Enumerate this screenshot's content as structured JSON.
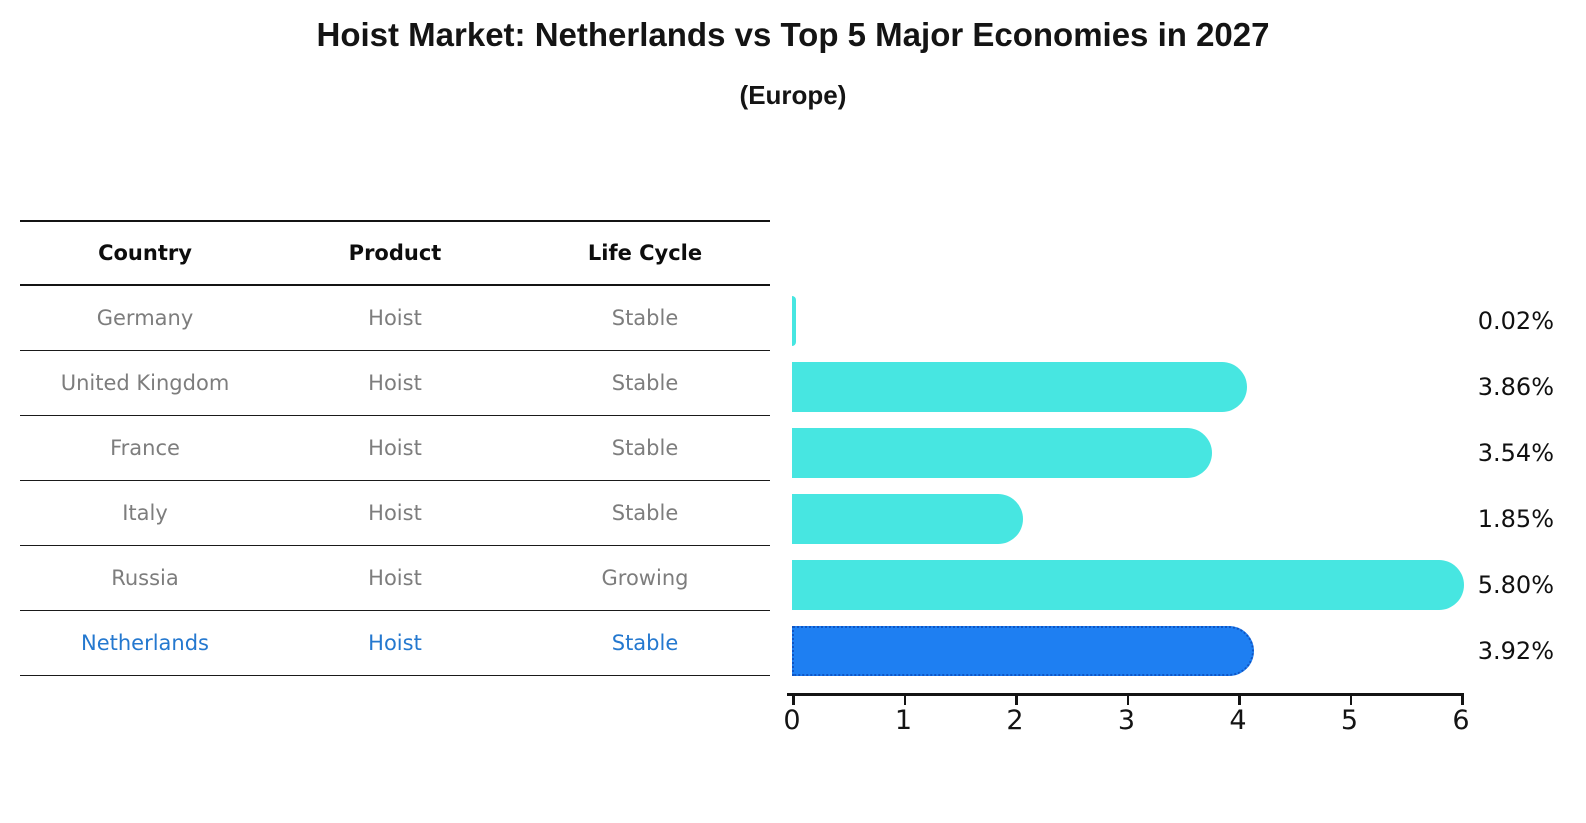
{
  "title": "Hoist Market: Netherlands vs Top 5 Major Economies in 2027",
  "subtitle": "(Europe)",
  "table": {
    "headers": {
      "country": "Country",
      "product": "Product",
      "life_cycle": "Life Cycle"
    },
    "rows": [
      {
        "country": "Germany",
        "product": "Hoist",
        "life_cycle": "Stable",
        "highlighted": false
      },
      {
        "country": "United Kingdom",
        "product": "Hoist",
        "life_cycle": "Stable",
        "highlighted": false
      },
      {
        "country": "France",
        "product": "Hoist",
        "life_cycle": "Stable",
        "highlighted": false
      },
      {
        "country": "Italy",
        "product": "Hoist",
        "life_cycle": "Stable",
        "highlighted": false
      },
      {
        "country": "Russia",
        "product": "Hoist",
        "life_cycle": "Growing",
        "highlighted": false
      },
      {
        "country": "Netherlands",
        "product": "Hoist",
        "life_cycle": "Stable",
        "highlighted": true
      }
    ]
  },
  "chart_data": {
    "type": "bar",
    "orientation": "horizontal",
    "title": "Hoist Market: Netherlands vs Top 5 Major Economies in 2027",
    "subtitle": "(Europe)",
    "categories": [
      "Germany",
      "United Kingdom",
      "France",
      "Italy",
      "Russia",
      "Netherlands"
    ],
    "values": [
      0.02,
      3.86,
      3.54,
      1.85,
      5.8,
      3.92
    ],
    "value_labels": [
      "0.02%",
      "3.86%",
      "3.54%",
      "1.85%",
      "5.80%",
      "3.92%"
    ],
    "xlim": [
      0,
      6
    ],
    "x_ticks": [
      "0",
      "1",
      "2",
      "3",
      "4",
      "5",
      "6"
    ],
    "grid": false,
    "legend": false,
    "highlight_index": 5,
    "bar_color": "#47E6E1",
    "highlight_bar_color": "#1E7FF2",
    "highlight_border_color": "#0F55C4",
    "highlight_text_color": "#2478CF"
  }
}
